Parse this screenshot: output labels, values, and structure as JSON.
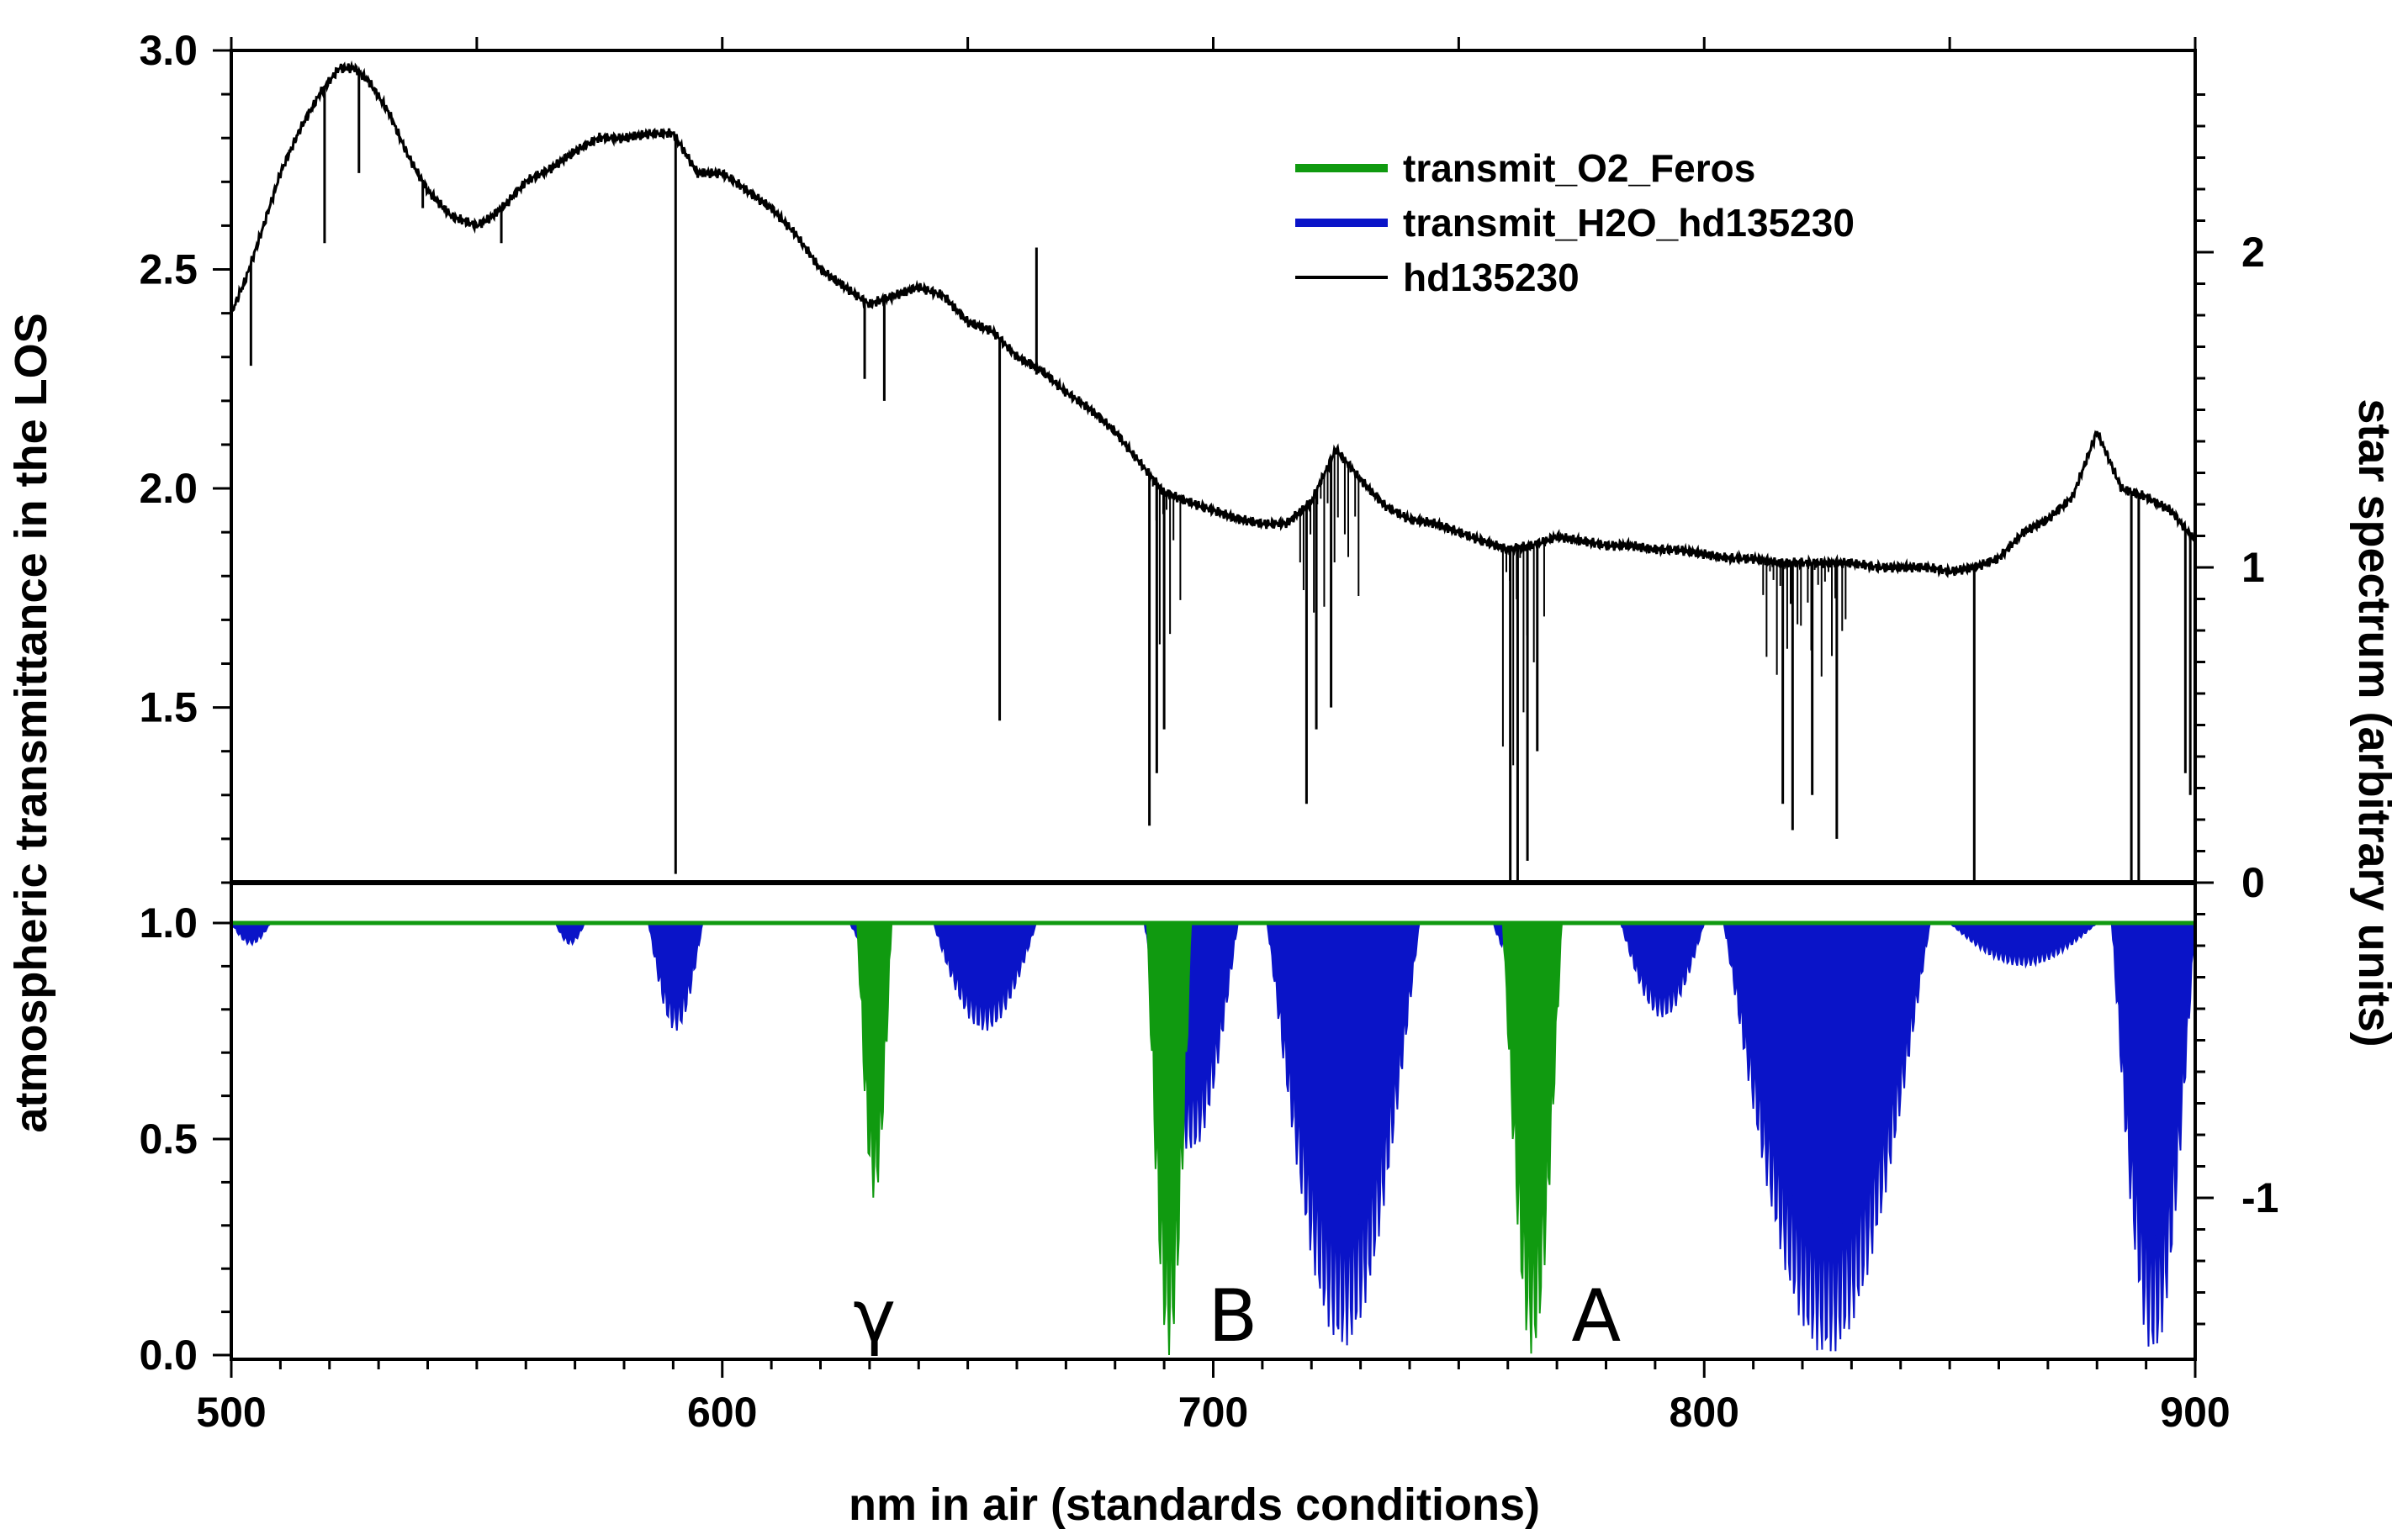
{
  "chart_data": {
    "type": "line",
    "xlabel": "nm in air (standards conditions)",
    "ylabel_left": "atmospheric transmittance in the LOS",
    "ylabel_right": "star spectrum (arbitrary units)",
    "xlim": [
      500,
      900
    ],
    "x_ticks": [
      "500",
      "600",
      "700",
      "800",
      "900"
    ],
    "upper_panel": {
      "ylim": [
        1.1,
        3.0
      ],
      "y_ticks": [
        "1.5",
        "2.0",
        "2.5",
        "3.0"
      ]
    },
    "lower_panel": {
      "ylim": [
        0.0,
        1.0
      ],
      "y_ticks": [
        "0.0",
        "0.5",
        "1.0"
      ]
    },
    "right_axis": {
      "ticks": [
        "2",
        "1",
        "0",
        "-1"
      ]
    },
    "legend": {
      "position": "top-right",
      "entries": [
        {
          "label": "transmit_O2_Feros",
          "color": "#109a10"
        },
        {
          "label": "transmit_H2O_hd135230",
          "color": "#0a14c8"
        },
        {
          "label": "hd135230",
          "color": "#000000"
        }
      ]
    },
    "band_labels": [
      {
        "text": "γ",
        "x": 631
      },
      {
        "text": "B",
        "x": 704
      },
      {
        "text": "A",
        "x": 778
      }
    ],
    "series": [
      {
        "name": "hd135230",
        "color": "#000000",
        "panel": "upper",
        "x": [
          500,
          503,
          506,
          510,
          514,
          518,
          522,
          525,
          528,
          532,
          536,
          540,
          545,
          550,
          553,
          556,
          560,
          565,
          570,
          575,
          580,
          585,
          590,
          595,
          600,
          605,
          610,
          615,
          620,
          625,
          630,
          635,
          640,
          645,
          650,
          655,
          660,
          665,
          670,
          675,
          680,
          685,
          690,
          695,
          700,
          705,
          710,
          715,
          720,
          725,
          730,
          735,
          740,
          745,
          750,
          755,
          760,
          765,
          770,
          775,
          780,
          785,
          790,
          795,
          800,
          805,
          810,
          815,
          820,
          825,
          830,
          835,
          840,
          845,
          850,
          855,
          860,
          865,
          870,
          875,
          880,
          885,
          890,
          895,
          900
        ],
        "y": [
          2.4,
          2.48,
          2.58,
          2.72,
          2.82,
          2.9,
          2.96,
          2.96,
          2.93,
          2.86,
          2.76,
          2.68,
          2.62,
          2.6,
          2.62,
          2.65,
          2.7,
          2.73,
          2.77,
          2.8,
          2.8,
          2.81,
          2.81,
          2.72,
          2.72,
          2.68,
          2.64,
          2.58,
          2.5,
          2.46,
          2.42,
          2.44,
          2.46,
          2.44,
          2.38,
          2.36,
          2.3,
          2.27,
          2.22,
          2.18,
          2.13,
          2.06,
          1.99,
          1.97,
          1.95,
          1.93,
          1.92,
          1.92,
          1.97,
          2.09,
          2.02,
          1.96,
          1.93,
          1.92,
          1.9,
          1.88,
          1.86,
          1.87,
          1.89,
          1.88,
          1.87,
          1.87,
          1.86,
          1.86,
          1.85,
          1.84,
          1.84,
          1.83,
          1.83,
          1.83,
          1.83,
          1.82,
          1.82,
          1.82,
          1.81,
          1.82,
          1.84,
          1.9,
          1.93,
          1.98,
          2.13,
          2.0,
          1.98,
          1.95,
          1.88
        ]
      },
      {
        "name": "transmit_O2_Feros",
        "color": "#109a10",
        "panel": "lower",
        "bands": [
          {
            "x0": 627.5,
            "x1": 634.5,
            "min": 0.36
          },
          {
            "x0": 686.5,
            "x1": 695.5,
            "min": 0.0
          },
          {
            "x0": 759.0,
            "x1": 771.0,
            "min": 0.0
          }
        ]
      },
      {
        "name": "transmit_H2O_hd135230",
        "color": "#0a14c8",
        "panel": "lower",
        "bands": [
          {
            "x0": 500,
            "x1": 508,
            "min": 0.95
          },
          {
            "x0": 566,
            "x1": 572,
            "min": 0.95
          },
          {
            "x0": 585,
            "x1": 596,
            "min": 0.75
          },
          {
            "x0": 626,
            "x1": 632,
            "min": 0.95
          },
          {
            "x0": 643,
            "x1": 664,
            "min": 0.75
          },
          {
            "x0": 686,
            "x1": 705,
            "min": 0.47
          },
          {
            "x0": 711,
            "x1": 742,
            "min": 0.02
          },
          {
            "x0": 757,
            "x1": 763,
            "min": 0.93
          },
          {
            "x0": 783,
            "x1": 800,
            "min": 0.78
          },
          {
            "x0": 804,
            "x1": 846,
            "min": 0.0
          },
          {
            "x0": 850,
            "x1": 880,
            "min": 0.9
          },
          {
            "x0": 883,
            "x1": 900,
            "min": 0.0
          }
        ]
      }
    ]
  }
}
